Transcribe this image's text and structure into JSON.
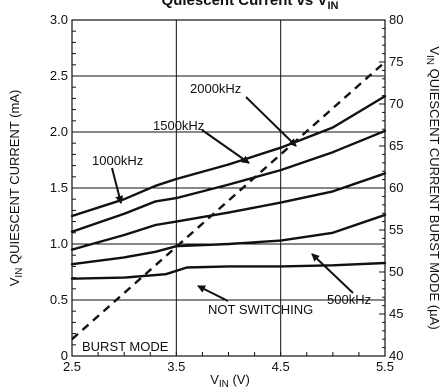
{
  "chart_data": {
    "type": "line",
    "title_main": "Quiescent Current vs V",
    "title_sub": "IN",
    "xlabel_main": "V",
    "xlabel_sub": "IN",
    "xlabel_unit": " (V)",
    "ylabel_main": "V",
    "ylabel_sub": "IN",
    "ylabel_rest": " QUIESCENT CURRENT (mA)",
    "y2label_main": "V",
    "y2label_sub": "IN",
    "y2label_rest": " QUIESCENT CURRENT BURST MODE (µA)",
    "xlim": [
      2.5,
      5.5
    ],
    "ylim": [
      0,
      3.0
    ],
    "y2lim": [
      40,
      80
    ],
    "xticks": [
      "2.5",
      "3.5",
      "4.5",
      "5.5"
    ],
    "yticks": [
      "0",
      "0.5",
      "1.0",
      "1.5",
      "2.0",
      "2.5",
      "3.0"
    ],
    "y2ticks": [
      "40",
      "45",
      "50",
      "55",
      "60",
      "65",
      "70",
      "75",
      "80"
    ],
    "grid": true,
    "series": [
      {
        "name": "2000kHz",
        "axis": "left",
        "style": "solid",
        "x": [
          2.5,
          3.0,
          3.3,
          3.5,
          4.0,
          4.5,
          5.0,
          5.5
        ],
        "y": [
          1.25,
          1.4,
          1.52,
          1.58,
          1.71,
          1.86,
          2.04,
          2.32
        ]
      },
      {
        "name": "1500kHz",
        "axis": "left",
        "style": "solid",
        "x": [
          2.5,
          3.0,
          3.3,
          3.5,
          4.0,
          4.5,
          5.0,
          5.5
        ],
        "y": [
          1.11,
          1.27,
          1.38,
          1.41,
          1.53,
          1.66,
          1.82,
          2.01
        ]
      },
      {
        "name": "1000kHz",
        "axis": "left",
        "style": "solid",
        "x": [
          2.5,
          3.0,
          3.3,
          3.5,
          4.0,
          4.5,
          5.0,
          5.5
        ],
        "y": [
          0.95,
          1.08,
          1.17,
          1.2,
          1.28,
          1.37,
          1.47,
          1.63
        ]
      },
      {
        "name": "500kHz",
        "axis": "left",
        "style": "solid",
        "x": [
          2.5,
          3.0,
          3.3,
          3.5,
          4.0,
          4.5,
          5.0,
          5.5
        ],
        "y": [
          0.82,
          0.88,
          0.93,
          0.98,
          1.0,
          1.03,
          1.1,
          1.26
        ]
      },
      {
        "name": "NOT SWITCHING",
        "axis": "left",
        "style": "solid",
        "x": [
          2.5,
          3.0,
          3.4,
          3.6,
          4.0,
          4.5,
          5.0,
          5.5
        ],
        "y": [
          0.69,
          0.7,
          0.73,
          0.79,
          0.8,
          0.8,
          0.81,
          0.83
        ]
      },
      {
        "name": "BURST MODE",
        "axis": "right",
        "style": "dashed",
        "x": [
          2.5,
          5.5
        ],
        "y": [
          42.0,
          75.0
        ]
      }
    ],
    "annotations": [
      {
        "text": "2000kHz",
        "series": "2000kHz"
      },
      {
        "text": "1500kHz",
        "series": "1500kHz"
      },
      {
        "text": "1000kHz",
        "series": "1000kHz"
      },
      {
        "text": "500kHz",
        "series": "500kHz"
      },
      {
        "text": "NOT SWITCHING",
        "series": "NOT SWITCHING"
      },
      {
        "text": "BURST MODE",
        "series": "BURST MODE"
      }
    ]
  }
}
